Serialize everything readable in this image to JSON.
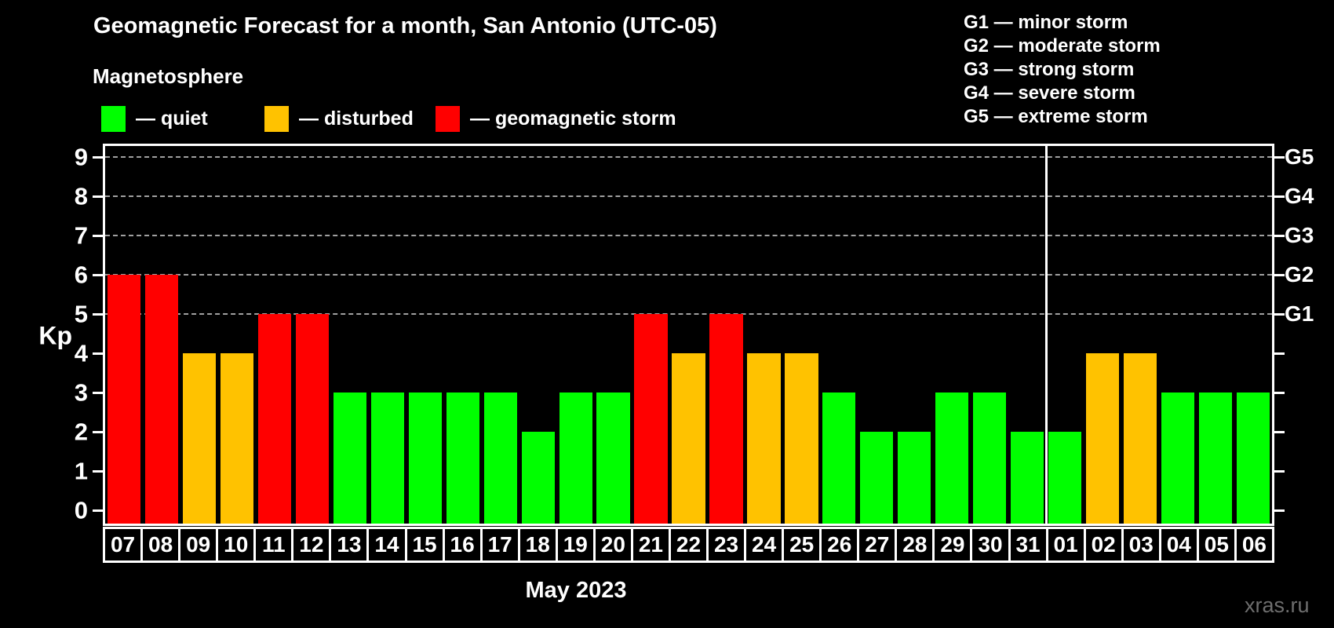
{
  "title": "Geomagnetic Forecast for a month, San Antonio (UTC-05)",
  "watermark": "xras.ru",
  "colors": {
    "quiet": "#00ff00",
    "disturbed": "#ffc200",
    "storm": "#ff0000",
    "grid": "#a0a0a0",
    "frame": "#ffffff",
    "text": "#ffffff",
    "watermark": "#6e6e6e",
    "background": "#000000"
  },
  "legend": {
    "title": "Magnetosphere",
    "items": [
      {
        "key": "quiet",
        "label": "— quiet"
      },
      {
        "key": "disturbed",
        "label": "— disturbed"
      },
      {
        "key": "storm",
        "label": "— geomagnetic storm"
      }
    ]
  },
  "storm_scale": {
    "items": [
      "G1 — minor storm",
      "G2 — moderate storm",
      "G3 — strong storm",
      "G4 — severe storm",
      "G5 — extreme storm"
    ]
  },
  "chart_data": {
    "type": "bar",
    "title": "Geomagnetic Forecast for a month, San Antonio (UTC-05)",
    "xlabel": "May 2023",
    "ylabel": "Kp",
    "ylim": [
      0,
      9
    ],
    "yticks": [
      0,
      1,
      2,
      3,
      4,
      5,
      6,
      7,
      8,
      9
    ],
    "gridlines_at": [
      5,
      6,
      7,
      8,
      9
    ],
    "grid": true,
    "legend_position": "top-left",
    "right_axis": [
      {
        "label": "G1",
        "value": 5
      },
      {
        "label": "G2",
        "value": 6
      },
      {
        "label": "G3",
        "value": 7
      },
      {
        "label": "G4",
        "value": 8
      },
      {
        "label": "G5",
        "value": 9
      }
    ],
    "separator_after_index": 24,
    "days": [
      {
        "day": "07",
        "kp": 6,
        "status": "storm"
      },
      {
        "day": "08",
        "kp": 6,
        "status": "storm"
      },
      {
        "day": "09",
        "kp": 4,
        "status": "disturbed"
      },
      {
        "day": "10",
        "kp": 4,
        "status": "disturbed"
      },
      {
        "day": "11",
        "kp": 5,
        "status": "storm"
      },
      {
        "day": "12",
        "kp": 5,
        "status": "storm"
      },
      {
        "day": "13",
        "kp": 3,
        "status": "quiet"
      },
      {
        "day": "14",
        "kp": 3,
        "status": "quiet"
      },
      {
        "day": "15",
        "kp": 3,
        "status": "quiet"
      },
      {
        "day": "16",
        "kp": 3,
        "status": "quiet"
      },
      {
        "day": "17",
        "kp": 3,
        "status": "quiet"
      },
      {
        "day": "18",
        "kp": 2,
        "status": "quiet"
      },
      {
        "day": "19",
        "kp": 3,
        "status": "quiet"
      },
      {
        "day": "20",
        "kp": 3,
        "status": "quiet"
      },
      {
        "day": "21",
        "kp": 5,
        "status": "storm"
      },
      {
        "day": "22",
        "kp": 4,
        "status": "disturbed"
      },
      {
        "day": "23",
        "kp": 5,
        "status": "storm"
      },
      {
        "day": "24",
        "kp": 4,
        "status": "disturbed"
      },
      {
        "day": "25",
        "kp": 4,
        "status": "disturbed"
      },
      {
        "day": "26",
        "kp": 3,
        "status": "quiet"
      },
      {
        "day": "27",
        "kp": 2,
        "status": "quiet"
      },
      {
        "day": "28",
        "kp": 2,
        "status": "quiet"
      },
      {
        "day": "29",
        "kp": 3,
        "status": "quiet"
      },
      {
        "day": "30",
        "kp": 3,
        "status": "quiet"
      },
      {
        "day": "31",
        "kp": 2,
        "status": "quiet"
      },
      {
        "day": "01",
        "kp": 2,
        "status": "quiet"
      },
      {
        "day": "02",
        "kp": 4,
        "status": "disturbed"
      },
      {
        "day": "03",
        "kp": 4,
        "status": "disturbed"
      },
      {
        "day": "04",
        "kp": 3,
        "status": "quiet"
      },
      {
        "day": "05",
        "kp": 3,
        "status": "quiet"
      },
      {
        "day": "06",
        "kp": 3,
        "status": "quiet"
      }
    ]
  }
}
